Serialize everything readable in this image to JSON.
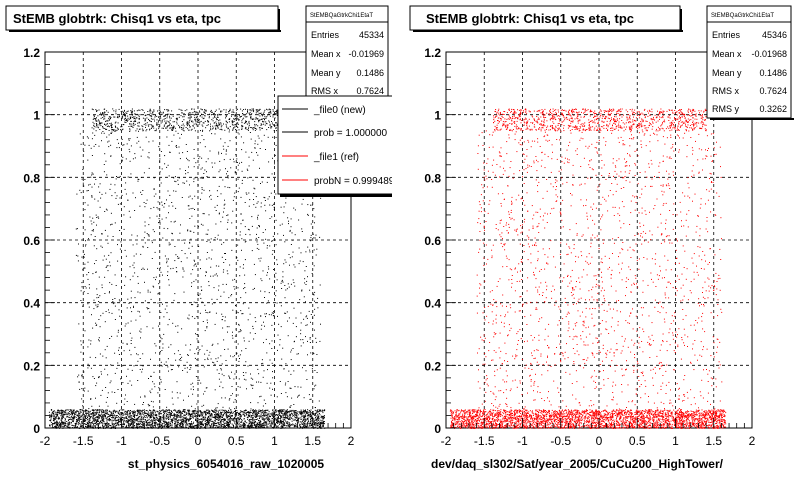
{
  "left_panel": {
    "title": "StEMB globtrk: Chisq1 vs eta, tpc",
    "xlabel": "st_physics_6054016_raw_1020005",
    "stats": {
      "name": "StEMBQaGtrkChi1EtaT",
      "rows": [
        {
          "label": "Entries",
          "value": "45334"
        },
        {
          "label": "Mean x",
          "value": "-0.01969"
        },
        {
          "label": "Mean y",
          "value": "0.1486"
        },
        {
          "label": "RMS x",
          "value": "0.7624"
        }
      ]
    },
    "legend": [
      {
        "label": "_file0 (new)",
        "color": "#000000"
      },
      {
        "label": "prob = 1.000000",
        "color": "#000000"
      },
      {
        "label": "_file1 (ref)",
        "color": "#ff0000"
      },
      {
        "label": "probN = 0.999489",
        "color": "#ff0000"
      }
    ]
  },
  "right_panel": {
    "title": "StEMB globtrk: Chisq1 vs eta, tpc",
    "xlabel": "dev/daq_sl302/Sat/year_2005/CuCu200_HighTower/",
    "stats": {
      "name": "StEMBQaGtrkChi1EtaT",
      "rows": [
        {
          "label": "Entries",
          "value": "45346"
        },
        {
          "label": "Mean x",
          "value": "-0.01968"
        },
        {
          "label": "Mean y",
          "value": "0.1486"
        },
        {
          "label": "RMS x",
          "value": "0.7624"
        },
        {
          "label": "RMS y",
          "value": "0.3262"
        }
      ]
    }
  },
  "chart_data": [
    {
      "type": "scatter",
      "title": "StEMB globtrk: Chisq1 vs eta, tpc",
      "xlabel": "st_physics_6054016_raw_1020005",
      "ylabel": "",
      "xlim": [
        -2,
        2
      ],
      "ylim": [
        0,
        1.2
      ],
      "xticks": [
        -2,
        -1.5,
        -1,
        -0.5,
        0,
        0.5,
        1,
        1.5,
        2
      ],
      "yticks": [
        0,
        0.2,
        0.4,
        0.6,
        0.8,
        1,
        1.2
      ],
      "grid": true,
      "color": "#000000",
      "entries": 45334,
      "bands": [
        {
          "y": [
            0.0,
            0.06
          ],
          "x": [
            -1.95,
            1.65
          ],
          "weight": 0.55
        },
        {
          "y": [
            0.95,
            1.02
          ],
          "x": [
            -1.4,
            1.4
          ],
          "weight": 0.17
        },
        {
          "y": [
            0.06,
            0.95
          ],
          "x": [
            -1.6,
            1.6
          ],
          "weight": 0.28
        }
      ]
    },
    {
      "type": "scatter",
      "title": "StEMB globtrk: Chisq1 vs eta, tpc",
      "xlabel": "dev/daq_sl302/Sat/year_2005/CuCu200_HighTower/",
      "ylabel": "",
      "xlim": [
        -2,
        2
      ],
      "ylim": [
        0,
        1.2
      ],
      "xticks": [
        -2,
        -1.5,
        -1,
        -0.5,
        0,
        0.5,
        1,
        1.5,
        2
      ],
      "yticks": [
        0,
        0.2,
        0.4,
        0.6,
        0.8,
        1,
        1.2
      ],
      "grid": true,
      "color": "#ff0000",
      "entries": 45346,
      "bands": [
        {
          "y": [
            0.0,
            0.06
          ],
          "x": [
            -1.95,
            1.65
          ],
          "weight": 0.55
        },
        {
          "y": [
            0.95,
            1.02
          ],
          "x": [
            -1.4,
            1.4
          ],
          "weight": 0.17
        },
        {
          "y": [
            0.06,
            0.95
          ],
          "x": [
            -1.6,
            1.6
          ],
          "weight": 0.28
        }
      ]
    }
  ]
}
